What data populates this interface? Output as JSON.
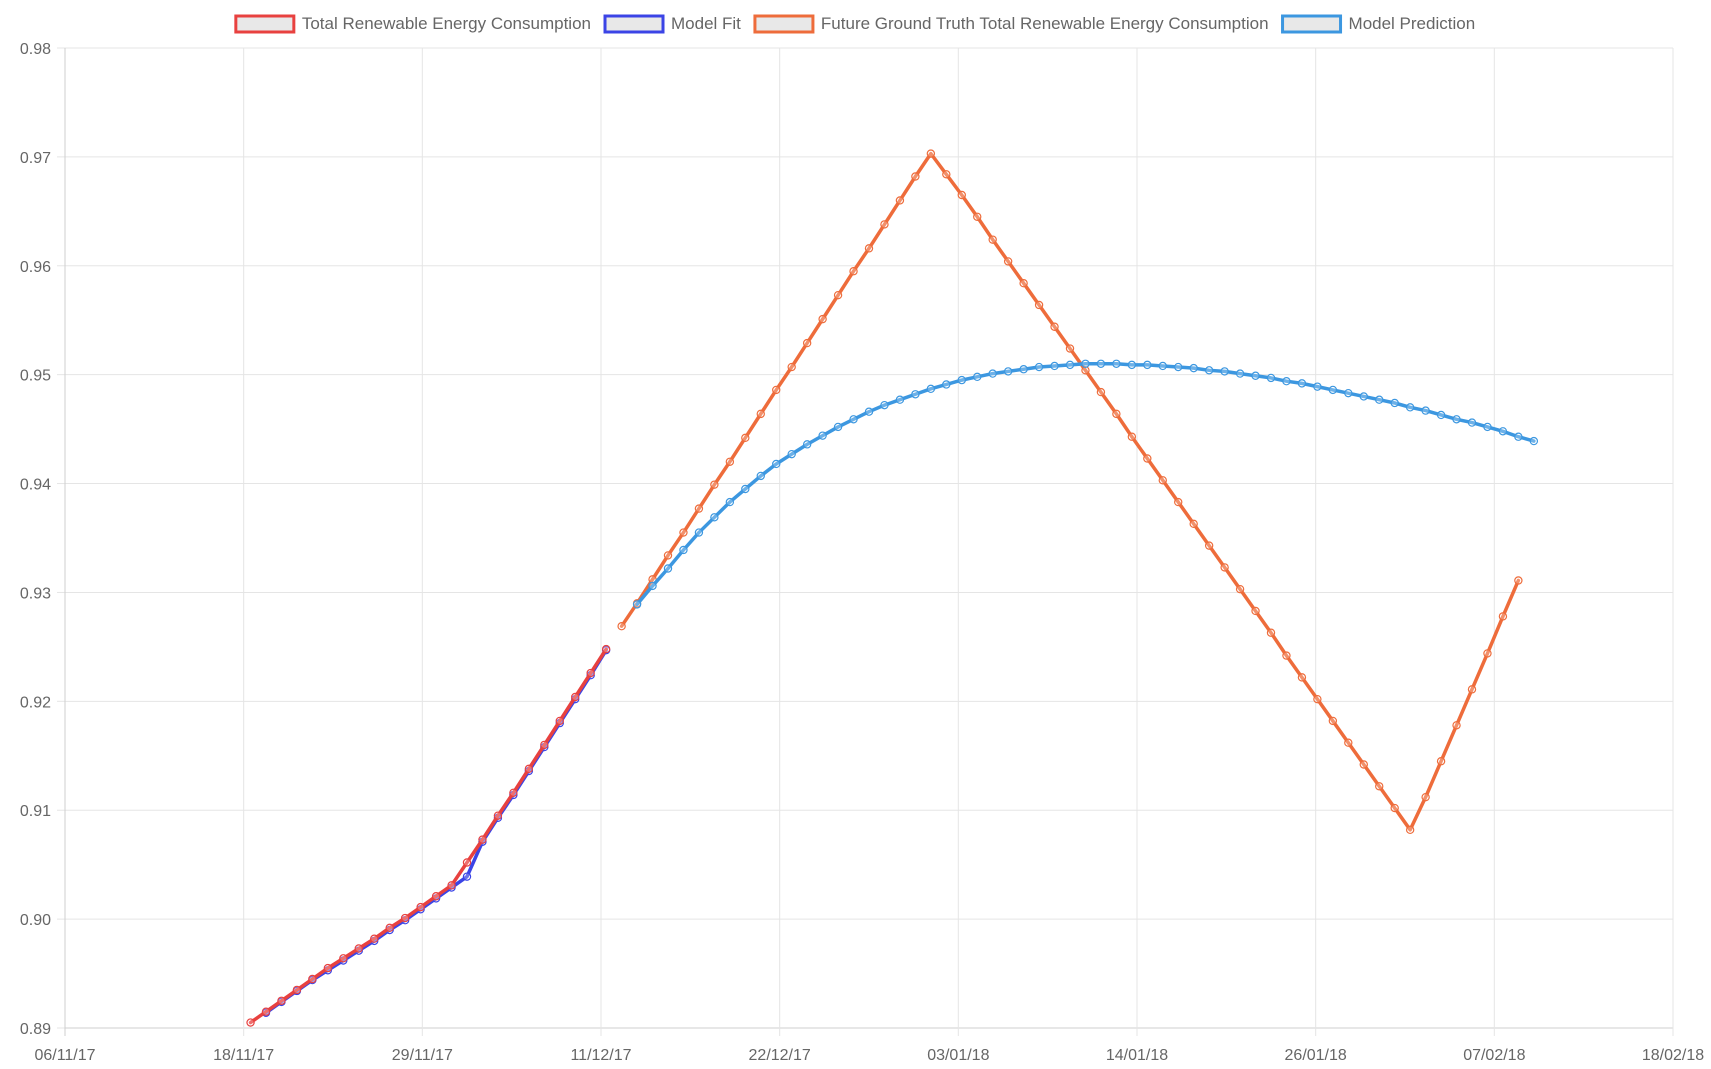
{
  "chart_data": {
    "type": "line",
    "x_axis": {
      "type": "date",
      "tick_labels": [
        "06/11/17",
        "18/11/17",
        "29/11/17",
        "11/12/17",
        "22/12/17",
        "03/01/18",
        "14/01/18",
        "26/01/18",
        "07/02/18",
        "18/02/18"
      ],
      "range": [
        "2017-11-06",
        "2018-02-18"
      ]
    },
    "y_axis": {
      "tick_labels": [
        "0.89",
        "0.90",
        "0.91",
        "0.92",
        "0.93",
        "0.94",
        "0.95",
        "0.96",
        "0.97",
        "0.98"
      ],
      "range": [
        0.89,
        0.98
      ]
    },
    "grid": true,
    "legend_position": "top",
    "series": [
      {
        "name": "Total Renewable Energy Consumption",
        "color": "#e8413f",
        "x": [
          "2017-11-18",
          "2017-11-19",
          "2017-11-20",
          "2017-11-21",
          "2017-11-22",
          "2017-11-23",
          "2017-11-24",
          "2017-11-25",
          "2017-11-26",
          "2017-11-27",
          "2017-11-28",
          "2017-11-29",
          "2017-11-30",
          "2017-12-01",
          "2017-12-02",
          "2017-12-03",
          "2017-12-04",
          "2017-12-05",
          "2017-12-06",
          "2017-12-07",
          "2017-12-08",
          "2017-12-09",
          "2017-12-10",
          "2017-12-11"
        ],
        "y": [
          0.8905,
          0.8915,
          0.8925,
          0.8935,
          0.8945,
          0.8955,
          0.8964,
          0.8973,
          0.8982,
          0.8992,
          0.9001,
          0.9011,
          0.9021,
          0.9031,
          0.9052,
          0.9073,
          0.9095,
          0.9116,
          0.9138,
          0.916,
          0.9182,
          0.9204,
          0.9226,
          0.9248
        ]
      },
      {
        "name": "Model Fit",
        "color": "#3b44e6",
        "x": [
          "2017-11-19",
          "2017-11-20",
          "2017-11-21",
          "2017-11-22",
          "2017-11-23",
          "2017-11-24",
          "2017-11-25",
          "2017-11-26",
          "2017-11-27",
          "2017-11-28",
          "2017-11-29",
          "2017-11-30",
          "2017-12-01",
          "2017-12-02",
          "2017-12-03",
          "2017-12-04",
          "2017-12-05",
          "2017-12-06",
          "2017-12-07",
          "2017-12-08",
          "2017-12-09",
          "2017-12-10",
          "2017-12-11"
        ],
        "y": [
          0.8914,
          0.8924,
          0.8934,
          0.8944,
          0.8953,
          0.8962,
          0.8971,
          0.898,
          0.899,
          0.8999,
          0.9009,
          0.9019,
          0.9029,
          0.9039,
          0.9071,
          0.9093,
          0.9114,
          0.9136,
          0.9158,
          0.918,
          0.9202,
          0.9224,
          0.9247
        ]
      },
      {
        "name": "Future Ground Truth Total Renewable Energy Consumption",
        "color": "#ee6c3b",
        "x": [
          "2017-12-12",
          "2017-12-13",
          "2017-12-14",
          "2017-12-15",
          "2017-12-16",
          "2017-12-17",
          "2017-12-18",
          "2017-12-19",
          "2017-12-20",
          "2017-12-21",
          "2017-12-22",
          "2017-12-23",
          "2017-12-24",
          "2017-12-25",
          "2017-12-26",
          "2017-12-27",
          "2017-12-28",
          "2017-12-29",
          "2017-12-30",
          "2017-12-31",
          "2018-01-01",
          "2018-01-02",
          "2018-01-03",
          "2018-01-04",
          "2018-01-05",
          "2018-01-06",
          "2018-01-07",
          "2018-01-08",
          "2018-01-09",
          "2018-01-10",
          "2018-01-11",
          "2018-01-12",
          "2018-01-13",
          "2018-01-14",
          "2018-01-15",
          "2018-01-16",
          "2018-01-17",
          "2018-01-18",
          "2018-01-19",
          "2018-01-20",
          "2018-01-21",
          "2018-01-22",
          "2018-01-23",
          "2018-01-24",
          "2018-01-25",
          "2018-01-26",
          "2018-01-27",
          "2018-01-28",
          "2018-01-29",
          "2018-01-30",
          "2018-01-31",
          "2018-02-01",
          "2018-02-02",
          "2018-02-03",
          "2018-02-04",
          "2018-02-05",
          "2018-02-06",
          "2018-02-07",
          "2018-02-08"
        ],
        "y": [
          0.9269,
          0.929,
          0.9312,
          0.9334,
          0.9355,
          0.9377,
          0.9399,
          0.942,
          0.9442,
          0.9464,
          0.9486,
          0.9507,
          0.9529,
          0.9551,
          0.9573,
          0.9595,
          0.9616,
          0.9638,
          0.966,
          0.9682,
          0.9703,
          0.9684,
          0.9665,
          0.9645,
          0.9624,
          0.9604,
          0.9584,
          0.9564,
          0.9544,
          0.9524,
          0.9504,
          0.9484,
          0.9464,
          0.9443,
          0.9423,
          0.9403,
          0.9383,
          0.9363,
          0.9343,
          0.9323,
          0.9303,
          0.9283,
          0.9263,
          0.9242,
          0.9222,
          0.9202,
          0.9182,
          0.9162,
          0.9142,
          0.9122,
          0.9102,
          0.9082,
          0.9112,
          0.9145,
          0.9178,
          0.9211,
          0.9244,
          0.9278,
          0.9311
        ]
      },
      {
        "name": "Model Prediction",
        "color": "#3c97e0",
        "x": [
          "2017-12-13",
          "2017-12-14",
          "2017-12-15",
          "2017-12-16",
          "2017-12-17",
          "2017-12-18",
          "2017-12-19",
          "2017-12-20",
          "2017-12-21",
          "2017-12-22",
          "2017-12-23",
          "2017-12-24",
          "2017-12-25",
          "2017-12-26",
          "2017-12-27",
          "2017-12-28",
          "2017-12-29",
          "2017-12-30",
          "2017-12-31",
          "2018-01-01",
          "2018-01-02",
          "2018-01-03",
          "2018-01-04",
          "2018-01-05",
          "2018-01-06",
          "2018-01-07",
          "2018-01-08",
          "2018-01-09",
          "2018-01-10",
          "2018-01-11",
          "2018-01-12",
          "2018-01-13",
          "2018-01-14",
          "2018-01-15",
          "2018-01-16",
          "2018-01-17",
          "2018-01-18",
          "2018-01-19",
          "2018-01-20",
          "2018-01-21",
          "2018-01-22",
          "2018-01-23",
          "2018-01-24",
          "2018-01-25",
          "2018-01-26",
          "2018-01-27",
          "2018-01-28",
          "2018-01-29",
          "2018-01-30",
          "2018-01-31",
          "2018-02-01",
          "2018-02-02",
          "2018-02-03",
          "2018-02-04",
          "2018-02-05",
          "2018-02-06",
          "2018-02-07",
          "2018-02-08",
          "2018-02-09"
        ],
        "y": [
          0.9289,
          0.9306,
          0.9322,
          0.9339,
          0.9355,
          0.9369,
          0.9383,
          0.9395,
          0.9407,
          0.9418,
          0.9427,
          0.9436,
          0.9444,
          0.9452,
          0.9459,
          0.9466,
          0.9472,
          0.9477,
          0.9482,
          0.9487,
          0.9491,
          0.9495,
          0.9498,
          0.9501,
          0.9503,
          0.9505,
          0.9507,
          0.9508,
          0.9509,
          0.951,
          0.951,
          0.951,
          0.9509,
          0.9509,
          0.9508,
          0.9507,
          0.9506,
          0.9504,
          0.9503,
          0.9501,
          0.9499,
          0.9497,
          0.9494,
          0.9492,
          0.9489,
          0.9486,
          0.9483,
          0.948,
          0.9477,
          0.9474,
          0.947,
          0.9467,
          0.9463,
          0.9459,
          0.9456,
          0.9452,
          0.9448,
          0.9443,
          0.9439
        ]
      }
    ]
  }
}
